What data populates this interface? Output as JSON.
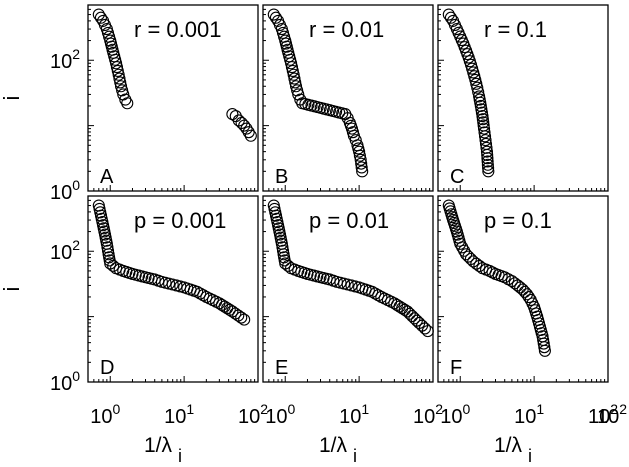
{
  "chart_data": [
    {
      "type": "scatter",
      "panel_label": "A",
      "annotation": "r = 0.001",
      "scale": "log-log",
      "grid": false,
      "x": [
        0.7,
        0.8,
        0.9,
        1.0,
        1.1,
        1.2,
        1.3,
        1.4,
        1.5,
        1.6,
        1.7,
        45,
        50,
        55,
        60,
        65,
        70,
        80
      ],
      "y": [
        500,
        400,
        300,
        200,
        130,
        90,
        60,
        40,
        30,
        25,
        22,
        15,
        14,
        12,
        11,
        10,
        9,
        7
      ]
    },
    {
      "type": "scatter",
      "panel_label": "B",
      "annotation": "r = 0.01",
      "scale": "log-log",
      "grid": false,
      "x": [
        0.7,
        0.8,
        0.9,
        1.0,
        1.1,
        1.2,
        1.3,
        1.4,
        1.5,
        1.6,
        1.7,
        6.5,
        7,
        7.5,
        8,
        8.5,
        9,
        9.5,
        10,
        10.5,
        11
      ],
      "y": [
        500,
        400,
        300,
        200,
        130,
        90,
        60,
        40,
        30,
        25,
        22,
        15,
        13,
        11,
        9,
        7,
        6,
        5,
        4,
        3,
        2
      ]
    },
    {
      "type": "scatter",
      "panel_label": "C",
      "annotation": "r = 0.1",
      "scale": "log-log",
      "grid": false,
      "x": [
        0.7,
        0.8,
        0.9,
        1.0,
        1.1,
        1.2,
        1.3,
        1.4,
        1.5,
        1.6,
        1.7,
        1.8,
        1.9,
        2.0,
        2.1,
        2.2,
        2.3,
        2.4
      ],
      "y": [
        500,
        400,
        300,
        230,
        180,
        140,
        110,
        85,
        65,
        50,
        38,
        28,
        20,
        14,
        9,
        6,
        4,
        2
      ]
    },
    {
      "type": "scatter",
      "panel_label": "D",
      "annotation": "p = 0.001",
      "scale": "log-log",
      "grid": false,
      "x": [
        0.7,
        0.75,
        0.8,
        0.85,
        0.9,
        0.95,
        1.0,
        1.2,
        1.5,
        2,
        3,
        4,
        5,
        7,
        10,
        15,
        20,
        30,
        45,
        65
      ],
      "y": [
        500,
        350,
        250,
        180,
        130,
        90,
        65,
        55,
        50,
        45,
        40,
        37,
        34,
        31,
        28,
        24,
        20,
        16,
        12,
        9
      ]
    },
    {
      "type": "scatter",
      "panel_label": "E",
      "annotation": "p = 0.01",
      "scale": "log-log",
      "grid": false,
      "x": [
        0.7,
        0.75,
        0.8,
        0.85,
        0.9,
        0.95,
        1.0,
        1.2,
        1.5,
        2,
        3,
        4,
        5,
        7,
        10,
        15,
        20,
        30,
        45,
        65,
        85
      ],
      "y": [
        500,
        350,
        250,
        180,
        130,
        90,
        65,
        55,
        50,
        45,
        40,
        37,
        34,
        31,
        28,
        24,
        20,
        16,
        12,
        8,
        6
      ]
    },
    {
      "type": "scatter",
      "panel_label": "F",
      "annotation": "p = 0.1",
      "scale": "log-log",
      "grid": false,
      "x": [
        0.7,
        0.8,
        0.9,
        1.0,
        1.2,
        1.5,
        2.0,
        2.5,
        3,
        4,
        5,
        6,
        7,
        8,
        9,
        10,
        11,
        12,
        13,
        14
      ],
      "y": [
        500,
        300,
        200,
        130,
        90,
        70,
        55,
        50,
        45,
        40,
        35,
        30,
        26,
        22,
        18,
        14,
        10,
        7,
        5,
        3
      ]
    }
  ],
  "axes": {
    "ylabel": "i",
    "xlabel_main": "1/λ",
    "xlabel_sub": "i",
    "ytick_labels": [
      {
        "base": "10",
        "exp": "0"
      },
      {
        "base": "10",
        "exp": "2"
      }
    ],
    "xtick_labels": [
      {
        "base": "10",
        "exp": "0"
      },
      {
        "base": "10",
        "exp": "1"
      },
      {
        "base": "10",
        "exp": "2"
      }
    ],
    "xlim": [
      0.5,
      100
    ],
    "ylim": [
      1,
      700
    ]
  }
}
